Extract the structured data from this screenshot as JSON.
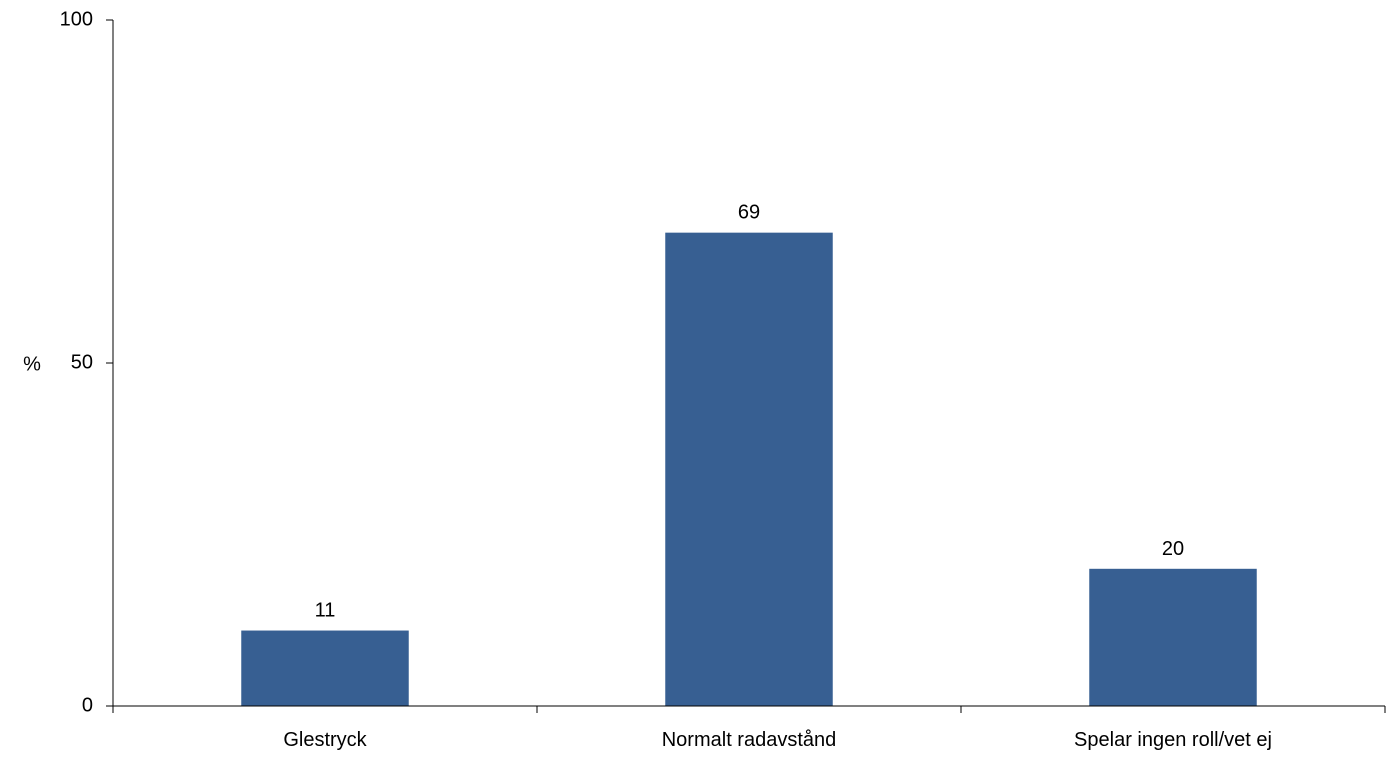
{
  "chart_data": {
    "type": "bar",
    "title": "",
    "xlabel": "",
    "ylabel": "%",
    "ylim": [
      0,
      100
    ],
    "yticks": [
      0,
      50,
      100
    ],
    "grid": false,
    "categories": [
      "Glestryck",
      "Normalt radavstånd",
      "Spelar ingen roll/vet ej"
    ],
    "values": [
      11,
      69,
      20
    ],
    "data_labels": [
      "11",
      "69",
      "20"
    ],
    "bar_color": "#375f92"
  }
}
